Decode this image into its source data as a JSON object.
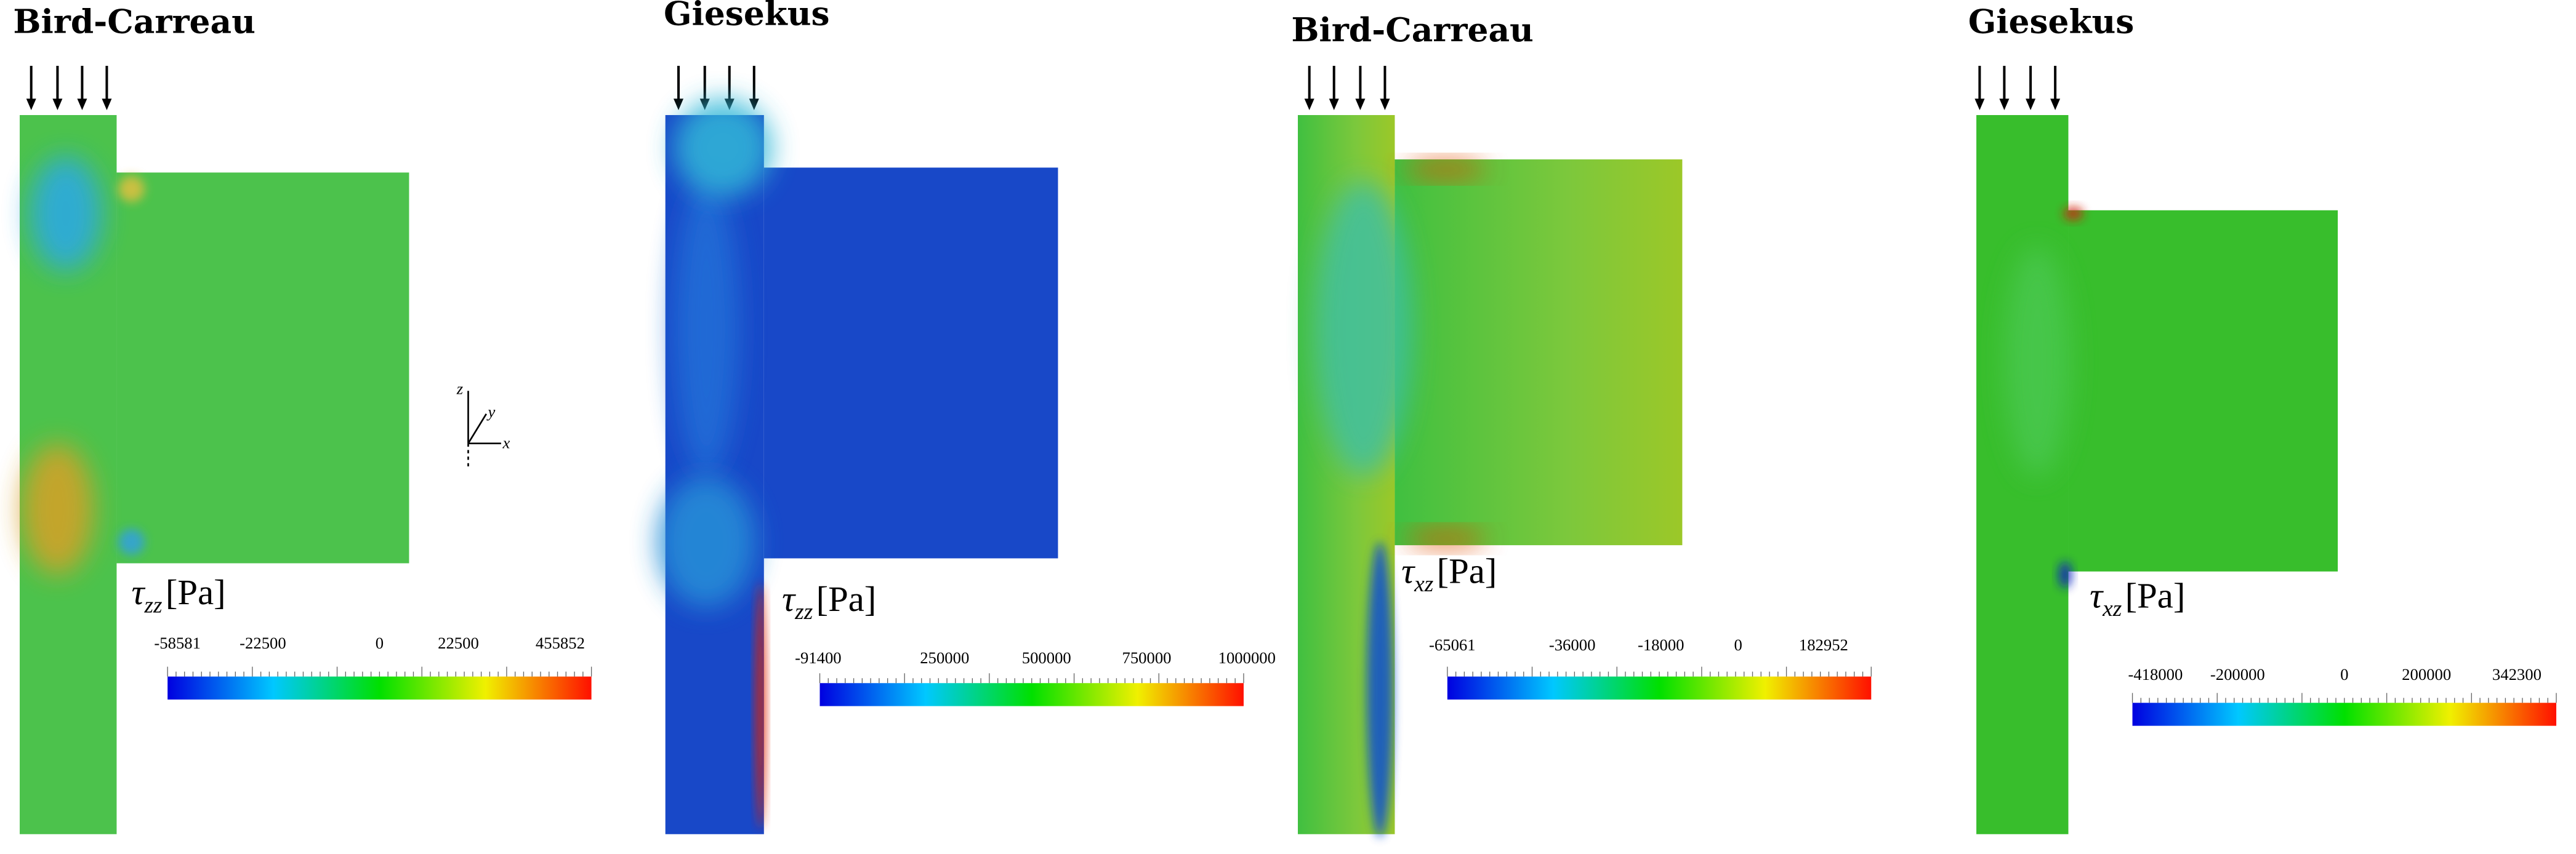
{
  "panels": [
    {
      "title": "Bird-Carreau",
      "label": {
        "symbol": "τ",
        "subscript": "zz",
        "unit": "[Pa]"
      },
      "ticks": [
        -58581,
        -22500,
        0,
        22500,
        455852
      ]
    },
    {
      "title": "Giesekus",
      "label": {
        "symbol": "τ",
        "subscript": "zz",
        "unit": "[Pa]"
      },
      "ticks": [
        -91400,
        250000,
        500000,
        750000,
        1000000
      ]
    },
    {
      "title": "Bird-Carreau",
      "label": {
        "symbol": "τ",
        "subscript": "xz",
        "unit": "[Pa]"
      },
      "ticks": [
        -65061,
        -36000,
        -18000,
        0,
        182952
      ]
    },
    {
      "title": "Giesekus",
      "label": {
        "symbol": "τ",
        "subscript": "xz",
        "unit": "[Pa]"
      },
      "ticks": [
        -418000,
        -200000,
        0,
        200000,
        342300
      ]
    }
  ],
  "axes": {
    "z": "z",
    "y": "y",
    "x": "x"
  }
}
